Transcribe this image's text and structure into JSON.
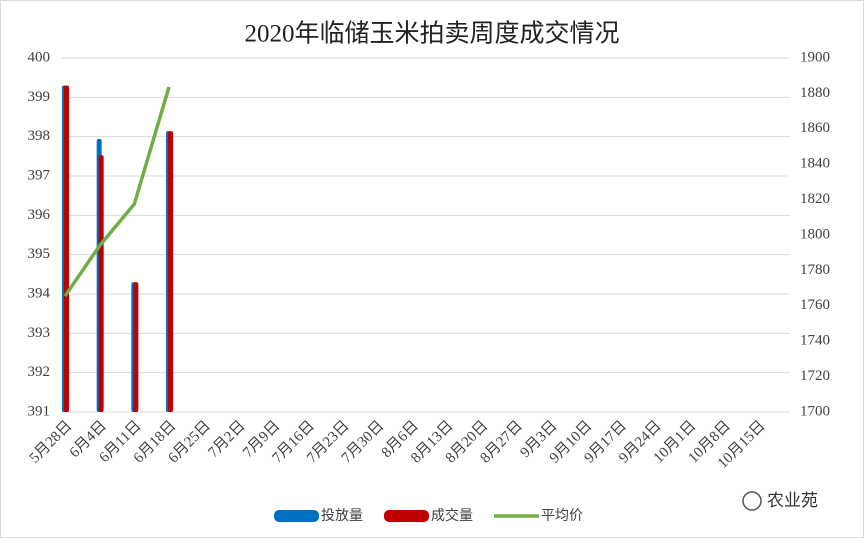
{
  "chart_data": {
    "type": "bar",
    "title": "2020年临储玉米拍卖周度成交情况",
    "categories": [
      "5月28日",
      "6月4日",
      "6月11日",
      "6月18日",
      "6月25日",
      "7月2日",
      "7月9日",
      "7月16日",
      "7月23日",
      "7月30日",
      "8月6日",
      "8月13日",
      "8月20日",
      "8月27日",
      "9月3日",
      "9月10日",
      "9月17日",
      "9月24日",
      "10月1日",
      "10月8日",
      "10月15日"
    ],
    "series": [
      {
        "name": "投放量",
        "type": "bar",
        "color": "#0070c0",
        "values": [
          399.3,
          397.94,
          394.3,
          398.14,
          null,
          null,
          null,
          null,
          null,
          null,
          null,
          null,
          null,
          null,
          null,
          null,
          null,
          null,
          null,
          null,
          null
        ]
      },
      {
        "name": "成交量",
        "type": "bar",
        "color": "#c00000",
        "values": [
          399.3,
          397.53,
          394.3,
          398.14,
          null,
          null,
          null,
          null,
          null,
          null,
          null,
          null,
          null,
          null,
          null,
          null,
          null,
          null,
          null,
          null,
          null
        ]
      },
      {
        "name": "平均价",
        "type": "line",
        "axis": "y2",
        "color": "#70ad47",
        "values": [
          1765.5,
          1794,
          1817.5,
          1883.6,
          null,
          null,
          null,
          null,
          null,
          null,
          null,
          null,
          null,
          null,
          null,
          null,
          null,
          null,
          null,
          null,
          null
        ]
      }
    ],
    "ylim": [
      391,
      400
    ],
    "yticks": [
      391,
      392,
      393,
      394,
      395,
      396,
      397,
      398,
      399,
      400
    ],
    "y2lim": [
      1700,
      1900
    ],
    "y2ticks": [
      1700,
      1720,
      1740,
      1760,
      1780,
      1800,
      1820,
      1840,
      1860,
      1880,
      1900
    ],
    "grid": true,
    "legend": "bottom",
    "watermark": "农业苑"
  }
}
